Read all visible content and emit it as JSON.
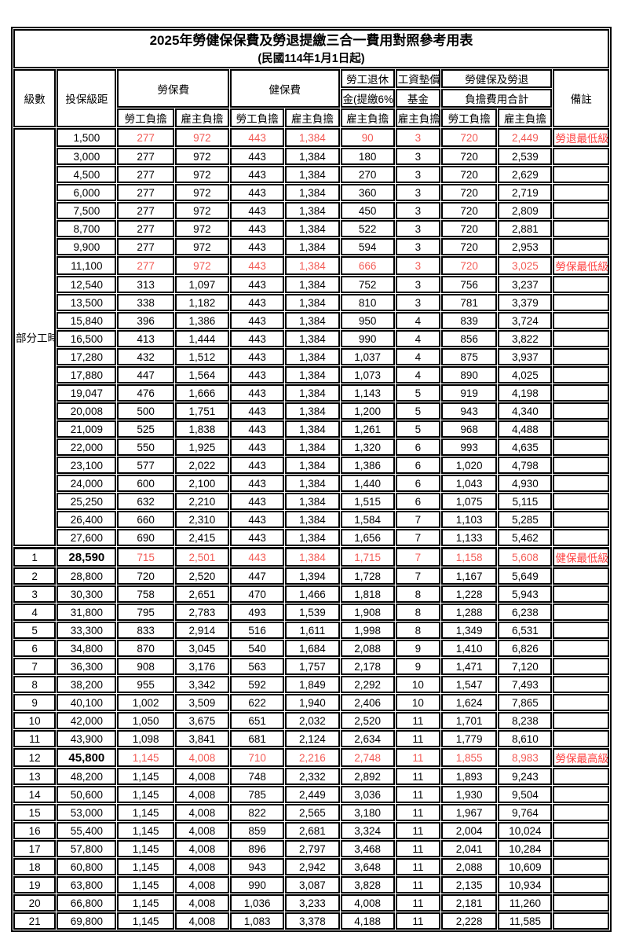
{
  "title": "2025年勞健保保費及勞退提繳三合一費用對照參考用表",
  "subtitle": "(民國114年1月1日起)",
  "colors": {
    "employee_column_bg": "#F9C28C",
    "employer_column_bg": "#DBDBF0",
    "highlight_number_red": "#F25B55",
    "note_red": "#FF4242",
    "grid_border": "#000000"
  },
  "header": {
    "level": "級數",
    "bracket": "投保級距",
    "labor_insurance": "勞保費",
    "health_insurance": "健保費",
    "pension_line1": "勞工退休",
    "pension_line2": "金(提繳6%)",
    "wage_fund_line1": "工資墊償",
    "wage_fund_line2": "基金",
    "total_line1": "勞健保及勞退",
    "total_line2": "負擔費用合計",
    "remark": "備註",
    "employee": "勞工負擔",
    "employer": "雇主負擔"
  },
  "part_time_label": "部分工時",
  "part_time_rowspan": 23,
  "rows": [
    {
      "bracket": "1,500",
      "values": [
        "277",
        "972",
        "443",
        "1,384",
        "90",
        "3",
        "720",
        "2,449"
      ],
      "note": "勞退最低級距",
      "highlight": true
    },
    {
      "bracket": "3,000",
      "values": [
        "277",
        "972",
        "443",
        "1,384",
        "180",
        "3",
        "720",
        "2,539"
      ]
    },
    {
      "bracket": "4,500",
      "values": [
        "277",
        "972",
        "443",
        "1,384",
        "270",
        "3",
        "720",
        "2,629"
      ]
    },
    {
      "bracket": "6,000",
      "values": [
        "277",
        "972",
        "443",
        "1,384",
        "360",
        "3",
        "720",
        "2,719"
      ]
    },
    {
      "bracket": "7,500",
      "values": [
        "277",
        "972",
        "443",
        "1,384",
        "450",
        "3",
        "720",
        "2,809"
      ]
    },
    {
      "bracket": "8,700",
      "values": [
        "277",
        "972",
        "443",
        "1,384",
        "522",
        "3",
        "720",
        "2,881"
      ]
    },
    {
      "bracket": "9,900",
      "values": [
        "277",
        "972",
        "443",
        "1,384",
        "594",
        "3",
        "720",
        "2,953"
      ]
    },
    {
      "bracket": "11,100",
      "values": [
        "277",
        "972",
        "443",
        "1,384",
        "666",
        "3",
        "720",
        "3,025"
      ],
      "note": "勞保最低級距",
      "highlight": true
    },
    {
      "bracket": "12,540",
      "values": [
        "313",
        "1,097",
        "443",
        "1,384",
        "752",
        "3",
        "756",
        "3,237"
      ]
    },
    {
      "bracket": "13,500",
      "values": [
        "338",
        "1,182",
        "443",
        "1,384",
        "810",
        "3",
        "781",
        "3,379"
      ]
    },
    {
      "bracket": "15,840",
      "values": [
        "396",
        "1,386",
        "443",
        "1,384",
        "950",
        "4",
        "839",
        "3,724"
      ]
    },
    {
      "bracket": "16,500",
      "values": [
        "413",
        "1,444",
        "443",
        "1,384",
        "990",
        "4",
        "856",
        "3,822"
      ]
    },
    {
      "bracket": "17,280",
      "values": [
        "432",
        "1,512",
        "443",
        "1,384",
        "1,037",
        "4",
        "875",
        "3,937"
      ]
    },
    {
      "bracket": "17,880",
      "values": [
        "447",
        "1,564",
        "443",
        "1,384",
        "1,073",
        "4",
        "890",
        "4,025"
      ]
    },
    {
      "bracket": "19,047",
      "values": [
        "476",
        "1,666",
        "443",
        "1,384",
        "1,143",
        "5",
        "919",
        "4,198"
      ]
    },
    {
      "bracket": "20,008",
      "values": [
        "500",
        "1,751",
        "443",
        "1,384",
        "1,200",
        "5",
        "943",
        "4,340"
      ]
    },
    {
      "bracket": "21,009",
      "values": [
        "525",
        "1,838",
        "443",
        "1,384",
        "1,261",
        "5",
        "968",
        "4,488"
      ]
    },
    {
      "bracket": "22,000",
      "values": [
        "550",
        "1,925",
        "443",
        "1,384",
        "1,320",
        "6",
        "993",
        "4,635"
      ]
    },
    {
      "bracket": "23,100",
      "values": [
        "577",
        "2,022",
        "443",
        "1,384",
        "1,386",
        "6",
        "1,020",
        "4,798"
      ]
    },
    {
      "bracket": "24,000",
      "values": [
        "600",
        "2,100",
        "443",
        "1,384",
        "1,440",
        "6",
        "1,043",
        "4,930"
      ]
    },
    {
      "bracket": "25,250",
      "values": [
        "632",
        "2,210",
        "443",
        "1,384",
        "1,515",
        "6",
        "1,075",
        "5,115"
      ]
    },
    {
      "bracket": "26,400",
      "values": [
        "660",
        "2,310",
        "443",
        "1,384",
        "1,584",
        "7",
        "1,103",
        "5,285"
      ]
    },
    {
      "bracket": "27,600",
      "values": [
        "690",
        "2,415",
        "443",
        "1,384",
        "1,656",
        "7",
        "1,133",
        "5,462"
      ]
    },
    {
      "level": "1",
      "bracket": "28,590",
      "values": [
        "715",
        "2,501",
        "443",
        "1,384",
        "1,715",
        "7",
        "1,158",
        "5,608"
      ],
      "note": "健保最低級距",
      "highlight": true,
      "emphasis": true,
      "section_start": true
    },
    {
      "level": "2",
      "bracket": "28,800",
      "values": [
        "720",
        "2,520",
        "447",
        "1,394",
        "1,728",
        "7",
        "1,167",
        "5,649"
      ]
    },
    {
      "level": "3",
      "bracket": "30,300",
      "values": [
        "758",
        "2,651",
        "470",
        "1,466",
        "1,818",
        "8",
        "1,228",
        "5,943"
      ]
    },
    {
      "level": "4",
      "bracket": "31,800",
      "values": [
        "795",
        "2,783",
        "493",
        "1,539",
        "1,908",
        "8",
        "1,288",
        "6,238"
      ]
    },
    {
      "level": "5",
      "bracket": "33,300",
      "values": [
        "833",
        "2,914",
        "516",
        "1,611",
        "1,998",
        "8",
        "1,349",
        "6,531"
      ]
    },
    {
      "level": "6",
      "bracket": "34,800",
      "values": [
        "870",
        "3,045",
        "540",
        "1,684",
        "2,088",
        "9",
        "1,410",
        "6,826"
      ]
    },
    {
      "level": "7",
      "bracket": "36,300",
      "values": [
        "908",
        "3,176",
        "563",
        "1,757",
        "2,178",
        "9",
        "1,471",
        "7,120"
      ]
    },
    {
      "level": "8",
      "bracket": "38,200",
      "values": [
        "955",
        "3,342",
        "592",
        "1,849",
        "2,292",
        "10",
        "1,547",
        "7,493"
      ]
    },
    {
      "level": "9",
      "bracket": "40,100",
      "values": [
        "1,002",
        "3,509",
        "622",
        "1,940",
        "2,406",
        "10",
        "1,624",
        "7,865"
      ]
    },
    {
      "level": "10",
      "bracket": "42,000",
      "values": [
        "1,050",
        "3,675",
        "651",
        "2,032",
        "2,520",
        "11",
        "1,701",
        "8,238"
      ]
    },
    {
      "level": "11",
      "bracket": "43,900",
      "values": [
        "1,098",
        "3,841",
        "681",
        "2,124",
        "2,634",
        "11",
        "1,779",
        "8,610"
      ]
    },
    {
      "level": "12",
      "bracket": "45,800",
      "values": [
        "1,145",
        "4,008",
        "710",
        "2,216",
        "2,748",
        "11",
        "1,855",
        "8,983"
      ],
      "note": "勞保最高級距",
      "highlight": true,
      "emphasis": true
    },
    {
      "level": "13",
      "bracket": "48,200",
      "values": [
        "1,145",
        "4,008",
        "748",
        "2,332",
        "2,892",
        "11",
        "1,893",
        "9,243"
      ]
    },
    {
      "level": "14",
      "bracket": "50,600",
      "values": [
        "1,145",
        "4,008",
        "785",
        "2,449",
        "3,036",
        "11",
        "1,930",
        "9,504"
      ]
    },
    {
      "level": "15",
      "bracket": "53,000",
      "values": [
        "1,145",
        "4,008",
        "822",
        "2,565",
        "3,180",
        "11",
        "1,967",
        "9,764"
      ]
    },
    {
      "level": "16",
      "bracket": "55,400",
      "values": [
        "1,145",
        "4,008",
        "859",
        "2,681",
        "3,324",
        "11",
        "2,004",
        "10,024"
      ]
    },
    {
      "level": "17",
      "bracket": "57,800",
      "values": [
        "1,145",
        "4,008",
        "896",
        "2,797",
        "3,468",
        "11",
        "2,041",
        "10,284"
      ]
    },
    {
      "level": "18",
      "bracket": "60,800",
      "values": [
        "1,145",
        "4,008",
        "943",
        "2,942",
        "3,648",
        "11",
        "2,088",
        "10,609"
      ]
    },
    {
      "level": "19",
      "bracket": "63,800",
      "values": [
        "1,145",
        "4,008",
        "990",
        "3,087",
        "3,828",
        "11",
        "2,135",
        "10,934"
      ]
    },
    {
      "level": "20",
      "bracket": "66,800",
      "values": [
        "1,145",
        "4,008",
        "1,036",
        "3,233",
        "4,008",
        "11",
        "2,181",
        "11,260"
      ]
    },
    {
      "level": "21",
      "bracket": "69,800",
      "values": [
        "1,145",
        "4,008",
        "1,083",
        "3,378",
        "4,188",
        "11",
        "2,228",
        "11,585"
      ]
    }
  ]
}
